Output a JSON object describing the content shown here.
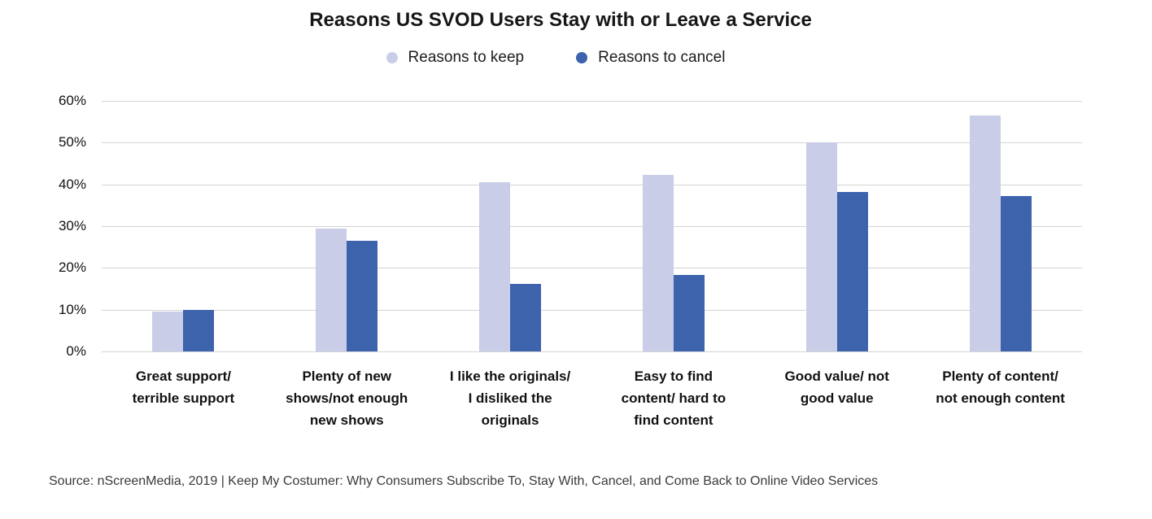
{
  "title": "Reasons US SVOD Users Stay with or Leave a Service",
  "legend": [
    {
      "label": "Reasons to keep",
      "color": "#c9cde7"
    },
    {
      "label": "Reasons to cancel",
      "color": "#3c63ac"
    }
  ],
  "source": "Source: nScreenMedia, 2019 |  Keep My Costumer: Why Consumers Subscribe To, Stay With, Cancel, and Come Back to Online Video Services",
  "chart_data": {
    "type": "bar",
    "title": "Reasons US SVOD Users Stay with or Leave a Service",
    "categories": [
      "Great support/ terrible support",
      "Plenty of new shows/not enough new shows",
      "I like the originals/ I disliked the originals",
      "Easy to find content/ hard to find content",
      "Good value/ not good value",
      "Plenty of content/ not enough content"
    ],
    "category_lines": [
      [
        "Great support/",
        "terrible support"
      ],
      [
        "Plenty of new",
        "shows/not enough",
        "new shows"
      ],
      [
        "I like the originals/",
        "I disliked the",
        "originals"
      ],
      [
        "Easy to find",
        "content/ hard to",
        "find content"
      ],
      [
        "Good value/ not",
        "good value"
      ],
      [
        "Plenty of content/",
        "not enough content"
      ]
    ],
    "series": [
      {
        "name": "Reasons to keep",
        "color": "#c9cde7",
        "values": [
          9.5,
          29.5,
          40.5,
          42.3,
          50.0,
          56.5
        ]
      },
      {
        "name": "Reasons to cancel",
        "color": "#3c63ac",
        "values": [
          10.0,
          26.5,
          16.2,
          18.3,
          38.2,
          37.3
        ]
      }
    ],
    "xlabel": "",
    "ylabel": "",
    "ylim": [
      0,
      60
    ],
    "yticks": [
      "0%",
      "10%",
      "20%",
      "30%",
      "40%",
      "50%",
      "60%"
    ],
    "grid": true,
    "legend_position": "top",
    "gridline_color": "#d4d4d4"
  }
}
